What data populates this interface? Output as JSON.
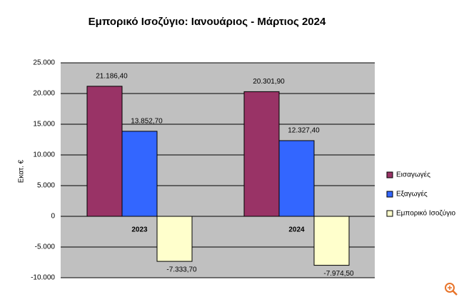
{
  "chart_data": {
    "type": "bar",
    "title": "Εμπορικό Ισοζύγιο: Ιανουάριος - Μάρτιος 2024",
    "y_label": "Εκατ. €",
    "categories": [
      "2023",
      "2024"
    ],
    "series": [
      {
        "name": "Εισαγωγές",
        "color": "#993366",
        "values": [
          21186.4,
          20301.9
        ],
        "value_labels": [
          "21.186,40",
          "20.301,90"
        ]
      },
      {
        "name": "Εξαγωγές",
        "color": "#3366ff",
        "values": [
          13852.7,
          12327.4
        ],
        "value_labels": [
          "13.852,70",
          "12.327,40"
        ]
      },
      {
        "name": "Εμπορικό Ισοζύγιο",
        "color": "#ffffcc",
        "values": [
          -7333.7,
          -7974.5
        ],
        "value_labels": [
          "-7.333,70",
          "-7.974,50"
        ]
      }
    ],
    "ylim": [
      -10000,
      25000
    ],
    "yticks": [
      {
        "value": -10000,
        "label": "-10.000"
      },
      {
        "value": -5000,
        "label": "-5.000"
      },
      0,
      {
        "value": 5000,
        "label": "5.000"
      },
      {
        "value": 10000,
        "label": "10.000"
      },
      {
        "value": 15000,
        "label": "15.000"
      },
      {
        "value": 20000,
        "label": "20.000"
      },
      {
        "value": 25000,
        "label": "25.000"
      }
    ],
    "grid": true,
    "legend": "right"
  }
}
